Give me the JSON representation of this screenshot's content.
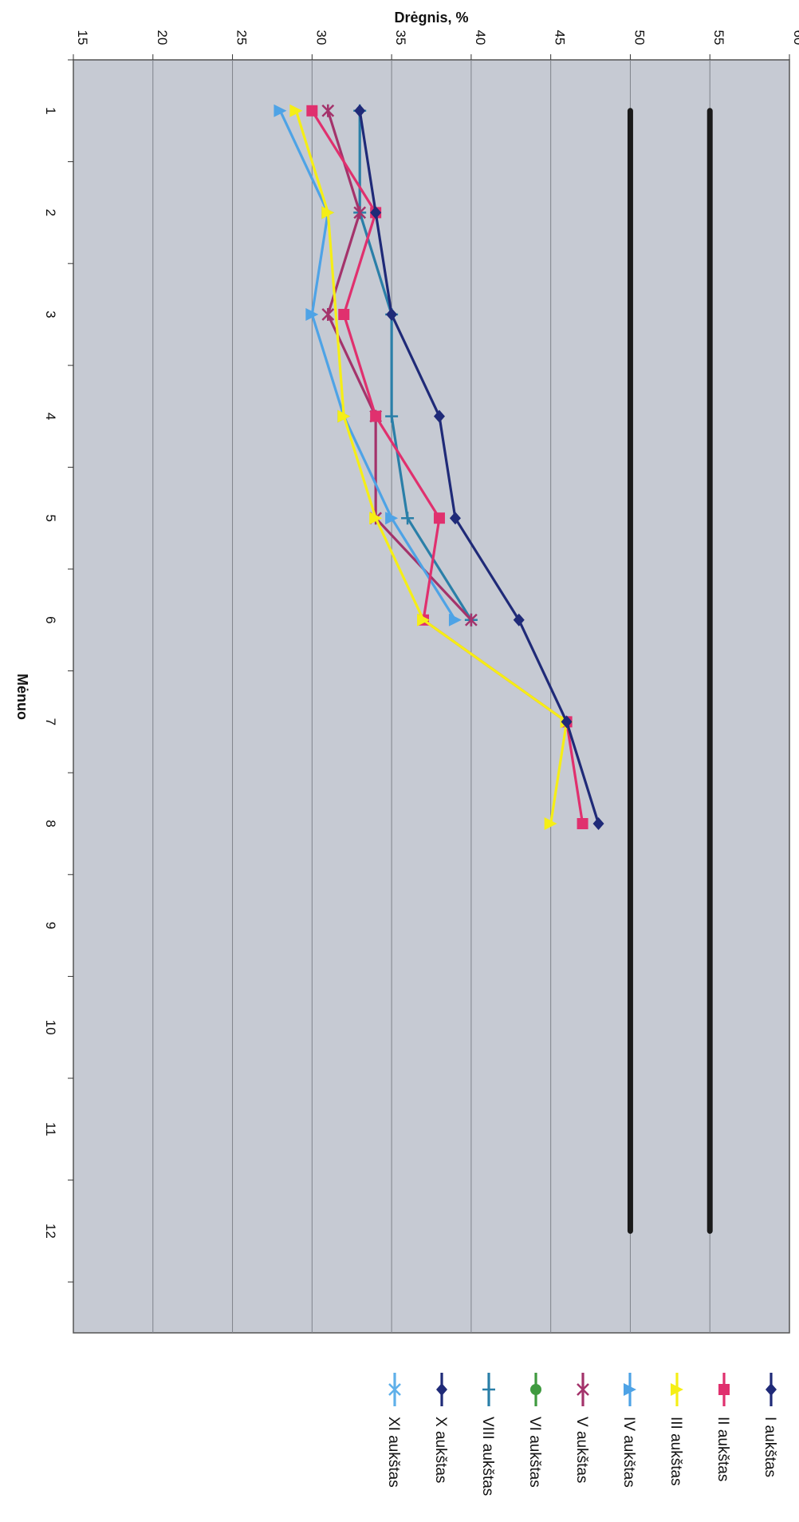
{
  "chart_data": {
    "type": "line",
    "orientation": "rotated-90-clockwise",
    "xlabel": "Mėnuo",
    "ylabel": "Drėgnis, %",
    "x": [
      1,
      2,
      3,
      4,
      5,
      6,
      7,
      8,
      9,
      10,
      11,
      12
    ],
    "xticks": [
      "1",
      "2",
      "3",
      "4",
      "5",
      "6",
      "7",
      "8",
      "9",
      "10",
      "11",
      "12"
    ],
    "ylim": [
      15,
      60
    ],
    "yticks": [
      "15",
      "20",
      "25",
      "30",
      "35",
      "40",
      "45",
      "50",
      "55",
      "60"
    ],
    "grid": true,
    "legend_position": "right-of-plot",
    "reference_lines": [
      {
        "value": 50,
        "from": 1,
        "to": 12,
        "color": "#1a1a1a"
      },
      {
        "value": 55,
        "from": 1,
        "to": 12,
        "color": "#1a1a1a"
      }
    ],
    "series": [
      {
        "name": "I aukštas",
        "color": "#1f2a78",
        "marker": "diamond",
        "points": [
          [
            1,
            33
          ],
          [
            2,
            34
          ],
          [
            3,
            35
          ],
          [
            4,
            38
          ],
          [
            5,
            39
          ],
          [
            6,
            43
          ],
          [
            7,
            46
          ],
          [
            8,
            48
          ]
        ]
      },
      {
        "name": "II aukštas",
        "color": "#e0306e",
        "marker": "square",
        "points": [
          [
            1,
            30
          ],
          [
            2,
            34
          ],
          [
            3,
            32
          ],
          [
            4,
            34
          ],
          [
            5,
            38
          ],
          [
            6,
            37
          ],
          [
            7,
            46
          ],
          [
            8,
            47
          ]
        ]
      },
      {
        "name": "III aukštas",
        "color": "#f5ee16",
        "marker": "triangle",
        "points": [
          [
            1,
            29
          ],
          [
            2,
            31
          ],
          [
            3,
            null
          ],
          [
            4,
            32
          ],
          [
            5,
            34
          ],
          [
            6,
            37
          ],
          [
            7,
            46
          ],
          [
            8,
            45
          ]
        ]
      },
      {
        "name": "IV aukštas",
        "color": "#4ea3e6",
        "marker": "triangle",
        "points": [
          [
            1,
            28
          ],
          [
            2,
            31
          ],
          [
            3,
            30
          ],
          [
            4,
            32
          ],
          [
            5,
            35
          ],
          [
            6,
            39
          ]
        ]
      },
      {
        "name": "V aukštas",
        "color": "#a4336b",
        "marker": "star",
        "points": [
          [
            1,
            31
          ],
          [
            2,
            33
          ],
          [
            3,
            31
          ],
          [
            4,
            34
          ],
          [
            5,
            34
          ],
          [
            6,
            40
          ]
        ]
      },
      {
        "name": "VI aukštas",
        "color": "#3f9a3f",
        "marker": "circle",
        "points": []
      },
      {
        "name": "VIII aukštas",
        "color": "#2a7fa8",
        "marker": "plus",
        "points": [
          [
            1,
            33
          ],
          [
            2,
            33
          ],
          [
            3,
            35
          ],
          [
            4,
            35
          ],
          [
            5,
            36
          ],
          [
            6,
            40
          ]
        ]
      },
      {
        "name": "X aukštas",
        "color": "#1f2a78",
        "marker": "diamond",
        "points": []
      },
      {
        "name": "XI aukštas",
        "color": "#5fb0ea",
        "marker": "star",
        "points": []
      }
    ]
  }
}
